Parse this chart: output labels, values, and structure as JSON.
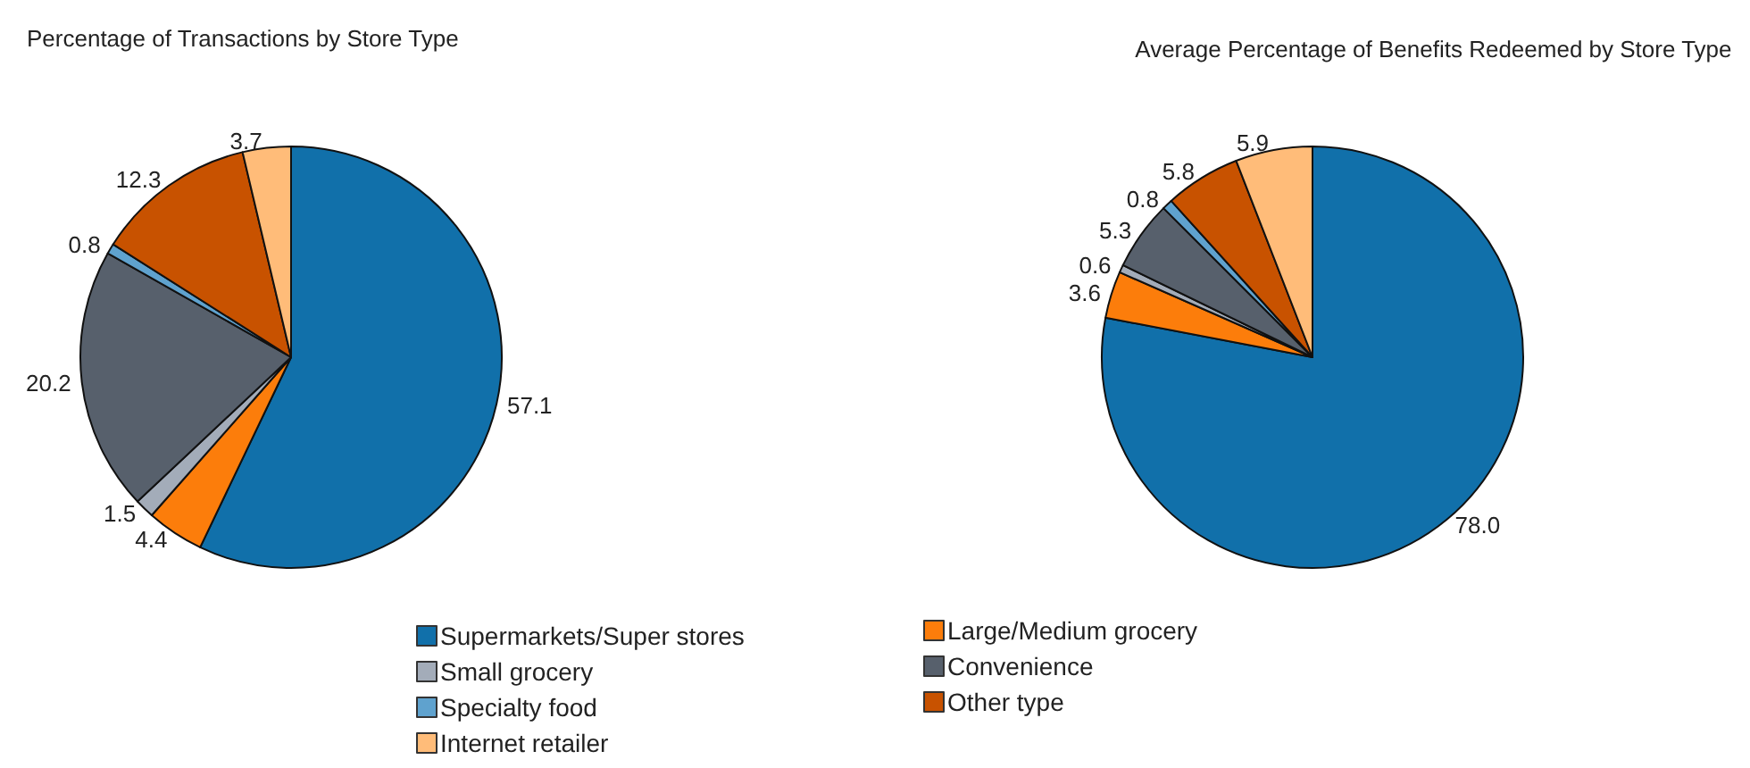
{
  "chart_data": {
    "type": "pie",
    "categories": [
      "Supermarkets/Super stores",
      "Large/Medium grocery",
      "Small grocery",
      "Convenience",
      "Specialty food",
      "Other type",
      "Internet retailer"
    ],
    "colors": [
      "#1170aa",
      "#fc7d0b",
      "#a3acb9",
      "#57606c",
      "#5fa2ce",
      "#c85200",
      "#ffbc79"
    ],
    "legend": "bottom",
    "series": [
      {
        "name": "Percentage of Transactions by Store Type",
        "values": [
          57.1,
          4.4,
          1.5,
          20.2,
          0.8,
          12.3,
          3.7
        ],
        "value_labels": [
          "57.1",
          "4.4",
          "1.5",
          "20.2",
          "0.8",
          "12.3",
          "3.7"
        ]
      },
      {
        "name": "Average Percentage of Benefits Redeemed by Store Type",
        "values": [
          78.0,
          3.6,
          0.6,
          5.3,
          0.8,
          5.8,
          5.9
        ],
        "value_labels": [
          "78.0",
          "3.6",
          "0.6",
          "5.3",
          "0.8",
          "5.8",
          "5.9"
        ]
      }
    ]
  }
}
